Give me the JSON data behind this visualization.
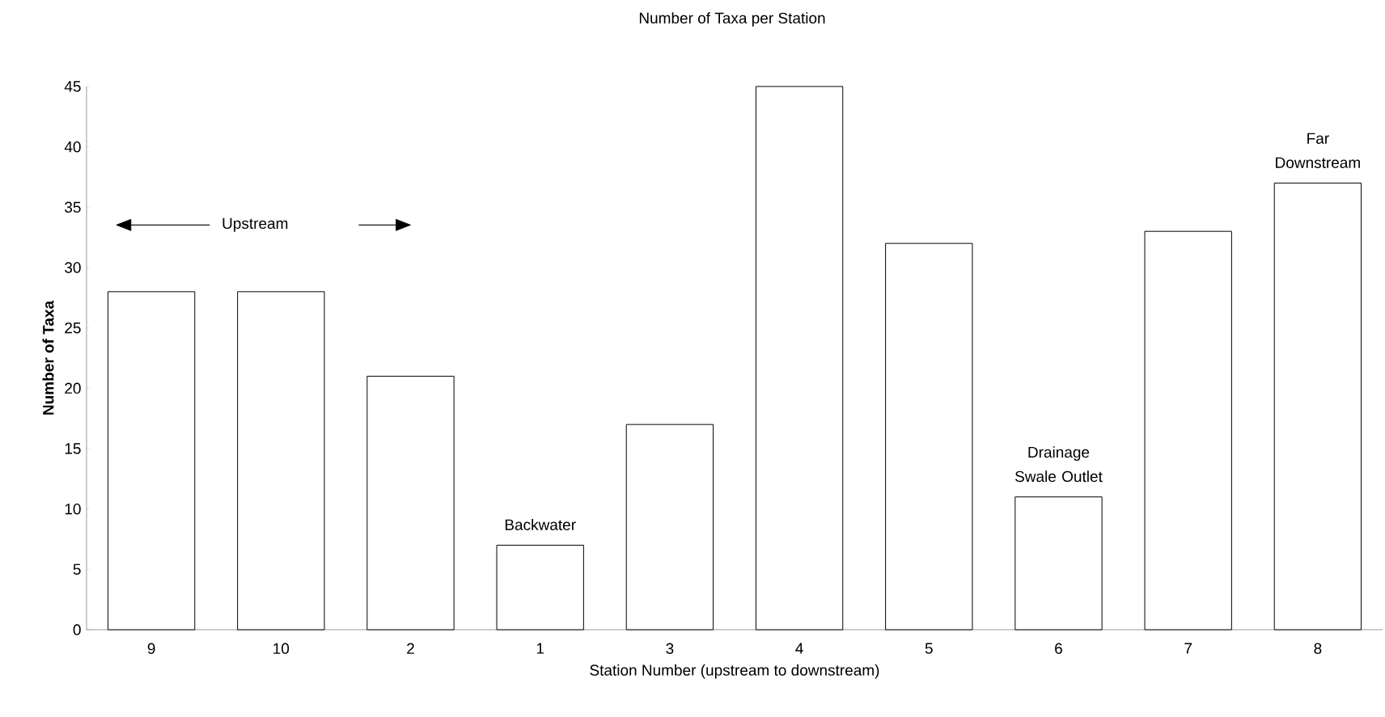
{
  "chart_data": {
    "type": "bar",
    "title": "Number of Taxa per Station",
    "xlabel": "Station Number (upstream to downstream)",
    "ylabel": "Number of Taxa",
    "categories": [
      "9",
      "10",
      "2",
      "1",
      "3",
      "4",
      "5",
      "6",
      "7",
      "8"
    ],
    "values": [
      28,
      28,
      21,
      7,
      17,
      45,
      32,
      11,
      33,
      37
    ],
    "color": "#ffffff",
    "ylim": [
      0,
      45
    ],
    "yticks": [
      0,
      5,
      10,
      15,
      20,
      25,
      30,
      35,
      40,
      45
    ],
    "annotations": [
      "Upstream",
      {
        "text": "Backwater",
        "x": "1",
        "y": 7
      },
      {
        "text": "Drainage Swale Outlet",
        "x": "6",
        "y": 11
      },
      {
        "text": "Far Downstream",
        "x": "8",
        "y": 37
      }
    ]
  }
}
